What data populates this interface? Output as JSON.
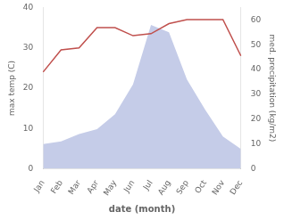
{
  "chart_data": {
    "type": "line",
    "xlabel": "date (month)",
    "ylabel": "max temp (C)",
    "y2label": "med. precipitation (kg/m2)",
    "categories": [
      "Jan",
      "Feb",
      "Mar",
      "Apr",
      "May",
      "Jun",
      "Jul",
      "Aug",
      "Sep",
      "Oct",
      "Nov",
      "Dec"
    ],
    "series": [
      {
        "type": "area",
        "axis": "y2",
        "color": "#c5cce8",
        "values": [
          10,
          11,
          14,
          16,
          22,
          34,
          58,
          55,
          36,
          24,
          13,
          8
        ]
      },
      {
        "type": "line",
        "color": "#c0504d",
        "values": [
          24,
          29.5,
          30,
          35,
          35,
          33,
          33.5,
          36,
          37,
          37,
          37,
          28
        ]
      }
    ],
    "ylim": [
      0,
      40
    ],
    "yticks": [
      0,
      10,
      20,
      30,
      40
    ],
    "y2lim": [
      0,
      65
    ],
    "y2ticks": [
      0,
      10,
      20,
      30,
      40,
      50,
      60
    ],
    "grid": false
  }
}
